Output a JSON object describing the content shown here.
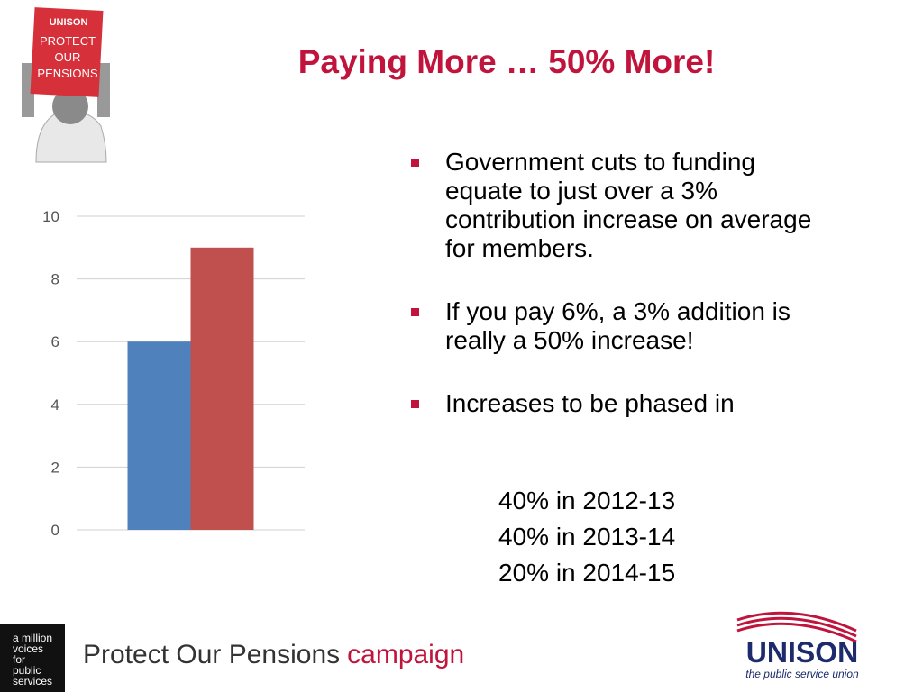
{
  "title": "Paying More … 50% More!",
  "sign": {
    "brand": "UNISON",
    "lines": [
      "PROTECT",
      "OUR",
      "PENSIONS"
    ]
  },
  "chart_data": {
    "type": "bar",
    "categories": [
      null
    ],
    "series": [
      {
        "color": "#4f81bd",
        "values": [
          6
        ]
      },
      {
        "color": "#c0504d",
        "values": [
          9
        ]
      }
    ],
    "ylim": [
      0,
      10
    ],
    "yticks": [
      0,
      2,
      4,
      6,
      8,
      10
    ],
    "grid": true
  },
  "bullets": [
    "Government cuts to funding equate to just over a 3% contribution increase on average for members.",
    "If you pay 6%, a 3% addition is really a 50% increase!",
    "Increases to be phased in"
  ],
  "phases": [
    "40% in 2012-13",
    "40% in 2013-14",
    "20% in 2014-15"
  ],
  "footer": {
    "badge": [
      "a million",
      "voices",
      "for",
      "public",
      "services"
    ],
    "campaign_main": "Protect Our Pensions",
    "campaign_accent": "campaign",
    "logo": "UNISON",
    "logo_tagline": "the public service union"
  }
}
